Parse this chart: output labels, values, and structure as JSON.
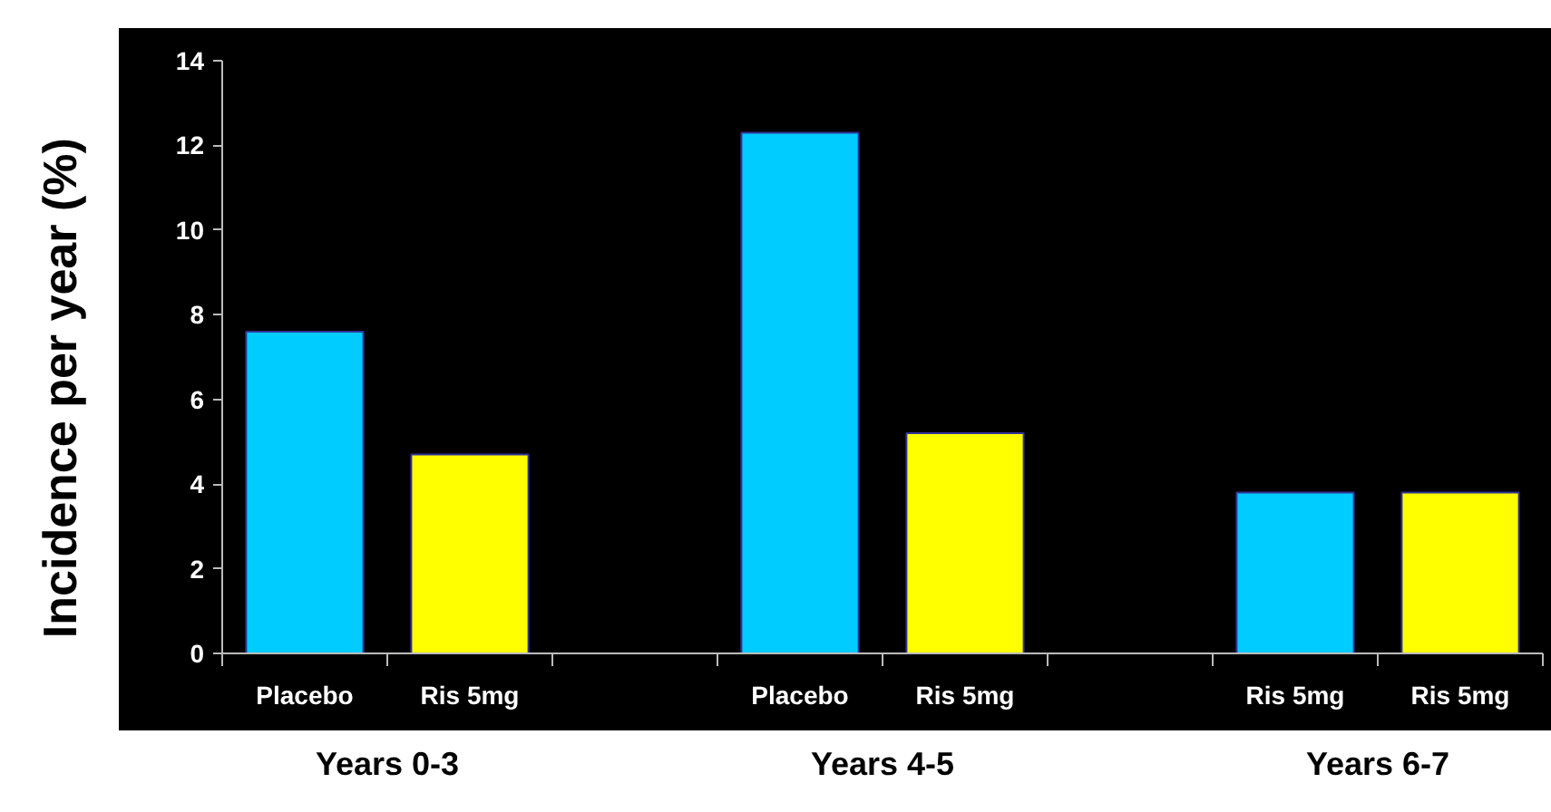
{
  "chart_data": {
    "type": "bar",
    "ylabel": "Incidence per year (%)",
    "categories": [
      "Placebo",
      "Ris 5mg",
      null,
      "Placebo",
      "Ris 5mg",
      null,
      "Ris 5mg",
      "Ris 5mg"
    ],
    "values": [
      7.6,
      4.7,
      null,
      12.3,
      5.2,
      null,
      3.8,
      3.8
    ],
    "colors": [
      "#00ccff",
      "#ffff00",
      "#000000",
      "#00ccff",
      "#ffff00",
      "#000000",
      "#00ccff",
      "#ffff00"
    ],
    "ylim": [
      0,
      14
    ],
    "yticks": [
      0,
      2,
      4,
      6,
      8,
      10,
      12,
      14
    ],
    "grid": false,
    "annotations": [
      "Years 0-3",
      "Years 4-5",
      "Years 6-7"
    ]
  }
}
